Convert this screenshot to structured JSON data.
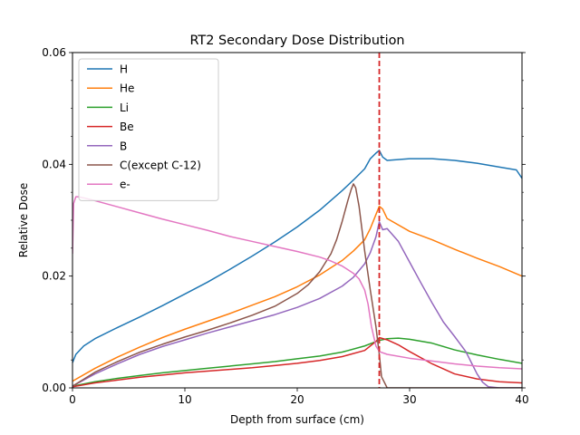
{
  "chart_data": {
    "type": "line",
    "title": "RT2 Secondary Dose Distribution",
    "xlabel": "Depth from surface (cm)",
    "ylabel": "Relative Dose",
    "xlim": [
      0,
      40
    ],
    "ylim": [
      0,
      0.06
    ],
    "x_ticks": [
      0,
      10,
      20,
      30,
      40
    ],
    "x_tick_labels": [
      "0",
      "10",
      "20",
      "30",
      "40"
    ],
    "y_ticks": [
      0,
      0.02,
      0.04,
      0.06
    ],
    "y_tick_labels": [
      "0.00",
      "0.02",
      "0.04",
      "0.06"
    ],
    "grid": false,
    "legend_position": "top-left",
    "vline": {
      "x": 27.3,
      "color": "#d62728",
      "style": "dashed"
    },
    "series": [
      {
        "name": "H",
        "color": "#1f77b4",
        "x": [
          0,
          0.3,
          1,
          2,
          4,
          6,
          8,
          10,
          12,
          14,
          16,
          18,
          20,
          22,
          24,
          25,
          26,
          26.5,
          27,
          27.3,
          27.6,
          28,
          30,
          32,
          34,
          36,
          38,
          39.5,
          40
        ],
        "y": [
          0.0045,
          0.006,
          0.0075,
          0.0088,
          0.0108,
          0.0127,
          0.0147,
          0.0168,
          0.0189,
          0.0212,
          0.0236,
          0.0261,
          0.0288,
          0.0318,
          0.0353,
          0.0372,
          0.0392,
          0.041,
          0.042,
          0.0425,
          0.0413,
          0.0407,
          0.041,
          0.041,
          0.0407,
          0.0402,
          0.0395,
          0.039,
          0.0375
        ]
      },
      {
        "name": "He",
        "color": "#ff7f0e",
        "x": [
          0,
          2,
          4,
          6,
          8,
          10,
          12,
          14,
          16,
          18,
          20,
          22,
          24,
          25,
          26,
          26.5,
          27,
          27.3,
          27.6,
          28,
          30,
          32,
          34,
          36,
          38,
          40
        ],
        "y": [
          0.0012,
          0.0035,
          0.0055,
          0.0073,
          0.009,
          0.0105,
          0.0119,
          0.0133,
          0.0148,
          0.0163,
          0.0181,
          0.0202,
          0.0228,
          0.0245,
          0.0265,
          0.0285,
          0.031,
          0.0325,
          0.032,
          0.0303,
          0.028,
          0.0265,
          0.0248,
          0.0232,
          0.0217,
          0.02
        ]
      },
      {
        "name": "Li",
        "color": "#2ca02c",
        "x": [
          0,
          2,
          4,
          6,
          8,
          10,
          12,
          14,
          16,
          18,
          20,
          22,
          24,
          26,
          27.3,
          28,
          29,
          30,
          32,
          34,
          36,
          38,
          40
        ],
        "y": [
          0.0003,
          0.0011,
          0.0017,
          0.0022,
          0.0027,
          0.0031,
          0.0035,
          0.0039,
          0.0043,
          0.0047,
          0.0052,
          0.0057,
          0.0064,
          0.0075,
          0.0085,
          0.0088,
          0.0089,
          0.0087,
          0.008,
          0.0068,
          0.0059,
          0.0051,
          0.0044
        ]
      },
      {
        "name": "Be",
        "color": "#d62728",
        "x": [
          0,
          2,
          4,
          6,
          8,
          10,
          12,
          14,
          16,
          18,
          20,
          22,
          24,
          26,
          27,
          27.3,
          28,
          29,
          30,
          32,
          34,
          36,
          38,
          40
        ],
        "y": [
          0.0002,
          0.0009,
          0.0014,
          0.0019,
          0.0023,
          0.0027,
          0.003,
          0.0033,
          0.0036,
          0.004,
          0.0044,
          0.0049,
          0.0056,
          0.0067,
          0.0083,
          0.009,
          0.0086,
          0.0077,
          0.0065,
          0.0043,
          0.0025,
          0.0016,
          0.0011,
          0.0009
        ]
      },
      {
        "name": "B",
        "color": "#9467bd",
        "x": [
          0,
          2,
          4,
          6,
          8,
          10,
          12,
          14,
          16,
          18,
          20,
          22,
          24,
          25,
          26,
          26.5,
          27,
          27.3,
          27.6,
          28,
          29,
          30,
          31,
          32,
          33,
          34,
          35,
          35.5,
          36,
          36.5,
          37,
          38,
          40
        ],
        "y": [
          0.0003,
          0.0025,
          0.0043,
          0.006,
          0.0074,
          0.0086,
          0.0098,
          0.0109,
          0.012,
          0.0131,
          0.0144,
          0.016,
          0.0182,
          0.0198,
          0.0222,
          0.0242,
          0.027,
          0.0297,
          0.0283,
          0.0285,
          0.0262,
          0.0225,
          0.0188,
          0.0152,
          0.0118,
          0.0092,
          0.0065,
          0.0045,
          0.0025,
          0.001,
          0.0002,
          0,
          0
        ]
      },
      {
        "name": "C(except C-12)",
        "color": "#8c564b",
        "x": [
          0,
          2,
          4,
          6,
          8,
          10,
          12,
          14,
          16,
          18,
          20,
          21,
          22,
          23,
          23.5,
          24,
          24.5,
          24.8,
          25,
          25.2,
          25.5,
          26,
          26.5,
          27,
          27.3,
          27.5,
          28,
          30,
          40
        ],
        "y": [
          0.0003,
          0.0028,
          0.0047,
          0.0064,
          0.0078,
          0.0091,
          0.0103,
          0.0116,
          0.013,
          0.0146,
          0.0169,
          0.0185,
          0.0208,
          0.024,
          0.0265,
          0.0298,
          0.0335,
          0.0355,
          0.0365,
          0.0358,
          0.0325,
          0.0245,
          0.0175,
          0.011,
          0.006,
          0.002,
          0,
          0,
          0
        ]
      },
      {
        "name": "e-",
        "color": "#e377c2",
        "x": [
          0,
          0.1,
          0.3,
          0.5,
          1,
          2,
          4,
          6,
          8,
          10,
          12,
          14,
          16,
          18,
          20,
          22,
          23,
          24,
          25,
          25.5,
          26,
          26.3,
          26.6,
          27,
          27.3,
          28,
          30,
          32,
          34,
          36,
          38,
          40
        ],
        "y": [
          0.024,
          0.033,
          0.0342,
          0.0342,
          0.034,
          0.0335,
          0.0324,
          0.0313,
          0.0302,
          0.0292,
          0.0282,
          0.0271,
          0.0262,
          0.0253,
          0.0244,
          0.0234,
          0.0227,
          0.0218,
          0.0205,
          0.0195,
          0.0175,
          0.015,
          0.011,
          0.0075,
          0.0065,
          0.006,
          0.0053,
          0.0048,
          0.0043,
          0.0039,
          0.0036,
          0.0034
        ]
      }
    ]
  }
}
